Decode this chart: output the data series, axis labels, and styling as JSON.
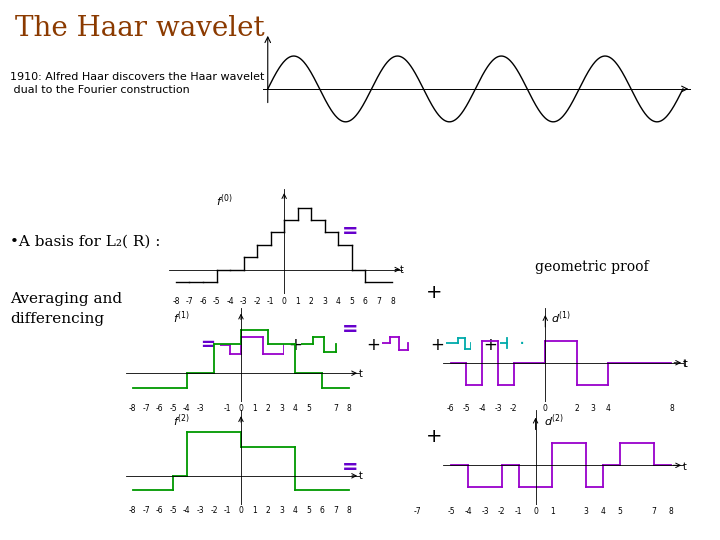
{
  "title": "The Haar wavelet",
  "title_color": "#8B3A00",
  "title_fontsize": 20,
  "subtitle": "1910: Alfred Haar discovers the Haar wavelet\n dual to the Fourier construction",
  "subtitle_fontsize": 8,
  "bullet1": "•A basis for L₂( R) :",
  "bullet2": "Averaging and\ndifferencing",
  "bg_color": "#ffffff",
  "sine_color": "#000000",
  "step_green": "#009900",
  "step_purple": "#9900cc",
  "step_cyan": "#00aaaa",
  "equals_color": "#6600cc",
  "geo_proof_color": "#000000"
}
